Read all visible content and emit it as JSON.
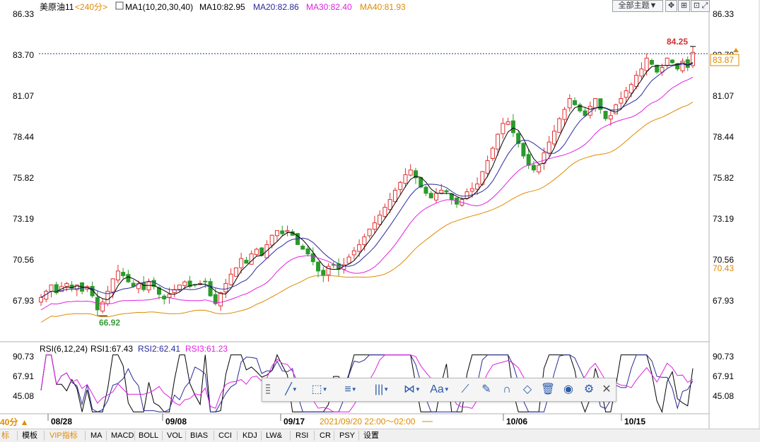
{
  "header": {
    "instrument": "美原油11",
    "period": "<240分>",
    "ma_legend": "MA1(10,20,30,40)",
    "ma10": "MA10:82.95",
    "ma20": "MA20:82.86",
    "ma30": "MA30:82.40",
    "ma40": "MA40:81.93",
    "theme_button": "全部主题▼"
  },
  "colors": {
    "up": "#e03030",
    "down": "#2a9a2a",
    "ma10": "#000000",
    "ma20": "#2a2a9a",
    "ma30": "#e020e0",
    "ma40": "#e08a00",
    "dotted_line": "#1a3a8a"
  },
  "price_axis": {
    "ticks": [
      "86.33",
      "83.70",
      "81.07",
      "78.44",
      "75.82",
      "73.19",
      "70.56",
      "67.93"
    ],
    "current_price_label": "83.87",
    "ma_value_label": "70.43"
  },
  "annotations": {
    "high": "84.25",
    "low": "66.92"
  },
  "rsi": {
    "legend": "RSI(6,12,24)",
    "rsi1": "RSI1:67.43",
    "rsi2": "RSI2:62.41",
    "rsi3": "RSI3:61.23",
    "ticks": [
      "90.73",
      "67.91",
      "45.08"
    ]
  },
  "x_axis": {
    "period_marker": "40分 ▲",
    "labels": [
      "08/28",
      "09/08",
      "09/17",
      "10/06",
      "10/15"
    ],
    "crosshair_time": "2021/09/20 22:00～02:00"
  },
  "toolbar": {
    "icons": [
      "line-icon",
      "rectangle-icon",
      "fibonacci-icon",
      "parallel-lines-icon",
      "pattern-icon",
      "text-icon",
      "ruler-icon",
      "pencil-icon",
      "magnet-icon",
      "eraser-icon",
      "trash-icon",
      "eye-icon",
      "gear-icon",
      "close-icon"
    ],
    "text_tool": "Aa"
  },
  "bottom_tabs": [
    "标",
    "模板",
    "VIP指标",
    "MA",
    "MACD",
    "BOLL",
    "VOL",
    "BIAS",
    "CCI",
    "KDJ",
    "LW&",
    "RSI",
    "CR",
    "PSY",
    "设置"
  ],
  "chart_data": [
    {
      "type": "candlestick",
      "title": "美原油11",
      "period": "240分",
      "ylim": [
        66.5,
        86.5
      ],
      "high_marker": 84.25,
      "low_marker": 66.92,
      "last_price": 83.87,
      "x_labels": [
        "08/28",
        "09/08",
        "09/17",
        "10/06",
        "10/15"
      ],
      "legend_values": {
        "MA10": 82.95,
        "MA20": 82.86,
        "MA30": 82.4,
        "MA40": 81.93
      },
      "close_series_approx": [
        68.1,
        68.5,
        68.9,
        68.4,
        68.8,
        69.0,
        68.7,
        68.9,
        68.5,
        68.8,
        68.2,
        67.3,
        67.8,
        68.5,
        69.3,
        69.8,
        69.5,
        69.1,
        68.8,
        69.0,
        68.6,
        69.1,
        68.8,
        68.3,
        68.0,
        68.3,
        68.6,
        68.9,
        69.1,
        68.8,
        68.9,
        69.0,
        69.1,
        68.2,
        67.7,
        68.4,
        69.0,
        69.6,
        70.0,
        70.6,
        70.3,
        70.9,
        71.2,
        70.8,
        71.5,
        72.1,
        72.4,
        72.2,
        72.4,
        72.1,
        71.5,
        71.2,
        70.9,
        70.4,
        69.8,
        69.5,
        70.1,
        70.2,
        69.9,
        70.2,
        70.7,
        71.1,
        71.5,
        72.0,
        72.5,
        72.9,
        73.4,
        73.9,
        74.4,
        75.0,
        75.5,
        76.0,
        76.3,
        75.8,
        75.2,
        74.8,
        74.5,
        74.8,
        75.0,
        74.9,
        74.4,
        74.1,
        74.4,
        74.9,
        75.1,
        75.4,
        76.2,
        76.9,
        77.7,
        78.6,
        79.3,
        79.4,
        78.7,
        78.0,
        77.2,
        76.6,
        76.3,
        76.6,
        77.4,
        78.1,
        78.8,
        79.6,
        80.2,
        80.9,
        80.5,
        80.1,
        79.8,
        80.4,
        80.9,
        80.2,
        79.6,
        79.8,
        80.5,
        80.9,
        81.4,
        81.8,
        82.4,
        82.8,
        83.5,
        83.1,
        82.6,
        82.9,
        83.5,
        83.2,
        82.8,
        83.3,
        82.9,
        83.87
      ]
    },
    {
      "type": "line",
      "title": "RSI(6,12,24)",
      "ylim": [
        30,
        95
      ],
      "y_ticks": [
        90.73,
        67.91,
        45.08
      ],
      "series": [
        {
          "name": "RSI1",
          "last": 67.43
        },
        {
          "name": "RSI2",
          "last": 62.41
        },
        {
          "name": "RSI3",
          "last": 61.23
        }
      ]
    }
  ]
}
